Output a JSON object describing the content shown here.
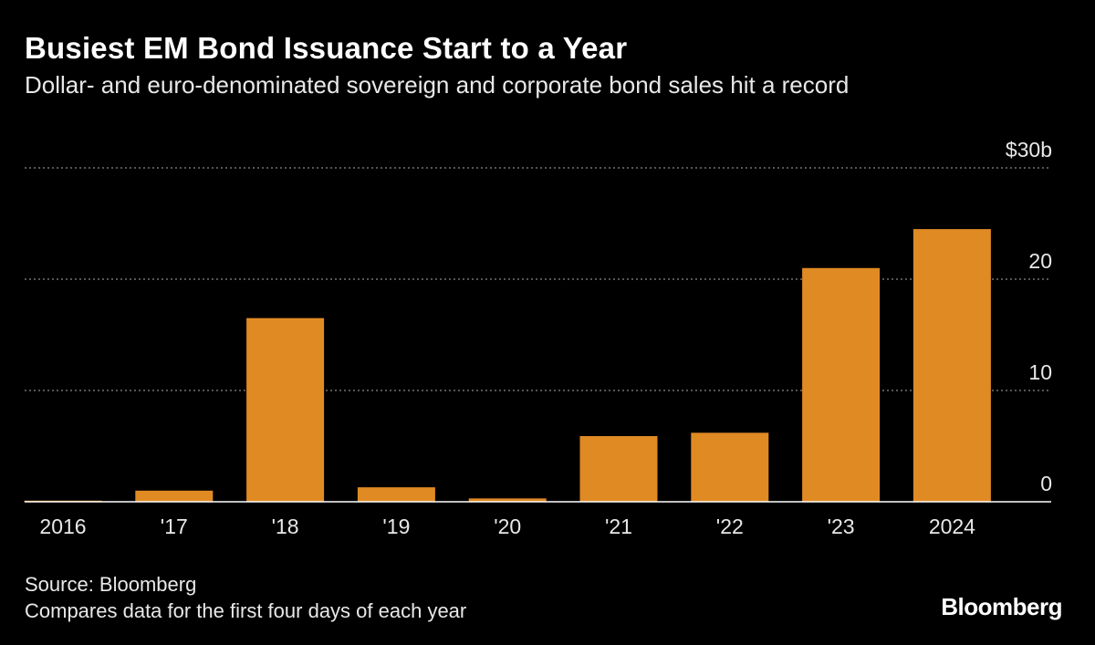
{
  "title": "Busiest EM Bond Issuance Start to a Year",
  "subtitle": "Dollar- and euro-denominated sovereign and corporate bond sales hit a record",
  "source": "Source: Bloomberg",
  "note": "Compares data for the first four days of each year",
  "logo": "Bloomberg",
  "colors": {
    "background": "#000000",
    "bar": "#e08a24",
    "grid": "#8a8a8a",
    "text": "#ffffff"
  },
  "chart_data": {
    "type": "bar",
    "categories": [
      "2016",
      "'17",
      "'18",
      "'19",
      "'20",
      "'21",
      "'22",
      "'23",
      "2024"
    ],
    "values": [
      0.1,
      1.0,
      16.5,
      1.3,
      0.3,
      5.9,
      6.2,
      21.0,
      24.5
    ],
    "ylim": [
      0,
      30
    ],
    "yticks": [
      0,
      10,
      20,
      30
    ],
    "ytick_labels": [
      "0",
      "10",
      "20",
      "$30b"
    ],
    "grid": true,
    "xlabel": "",
    "ylabel": ""
  }
}
